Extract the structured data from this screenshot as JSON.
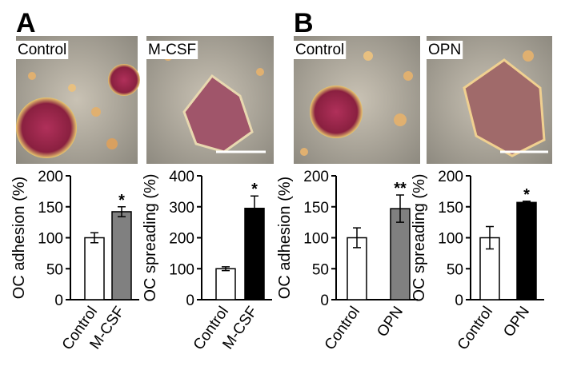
{
  "panels": [
    {
      "label": "A",
      "images": [
        "Control",
        "M-CSF"
      ]
    },
    {
      "label": "B",
      "images": [
        "Control",
        "OPN"
      ]
    }
  ],
  "chart_data": [
    {
      "type": "bar",
      "y_label": "OC adhesion (%)",
      "categories": [
        "Control",
        "M-CSF"
      ],
      "values": [
        100,
        142
      ],
      "errors": [
        8,
        8
      ],
      "colors": [
        "#ffffff",
        "#808080"
      ],
      "ylim": [
        0,
        200
      ],
      "yticks": [
        0,
        50,
        100,
        150,
        200
      ],
      "annotations": [
        {
          "category": "M-CSF",
          "text": "*"
        }
      ]
    },
    {
      "type": "bar",
      "y_label": "OC spreading (%)",
      "categories": [
        "Control",
        "M-CSF"
      ],
      "values": [
        100,
        295
      ],
      "errors": [
        6,
        40
      ],
      "colors": [
        "#ffffff",
        "#000000"
      ],
      "ylim": [
        0,
        400
      ],
      "yticks": [
        0,
        100,
        200,
        300,
        400
      ],
      "annotations": [
        {
          "category": "M-CSF",
          "text": "*"
        }
      ]
    },
    {
      "type": "bar",
      "y_label": "OC adhesion (%)",
      "categories": [
        "Control",
        "OPN"
      ],
      "values": [
        100,
        147
      ],
      "errors": [
        16,
        22
      ],
      "colors": [
        "#ffffff",
        "#808080"
      ],
      "ylim": [
        0,
        200
      ],
      "yticks": [
        0,
        50,
        100,
        150,
        200
      ],
      "annotations": [
        {
          "category": "OPN",
          "text": "**"
        }
      ]
    },
    {
      "type": "bar",
      "y_label": "OC spreading (%)",
      "categories": [
        "Control",
        "OPN"
      ],
      "values": [
        100,
        157
      ],
      "errors": [
        18,
        2
      ],
      "colors": [
        "#ffffff",
        "#000000"
      ],
      "ylim": [
        0,
        200
      ],
      "yticks": [
        0,
        50,
        100,
        150,
        200
      ],
      "annotations": [
        {
          "category": "OPN",
          "text": "*"
        }
      ]
    }
  ]
}
